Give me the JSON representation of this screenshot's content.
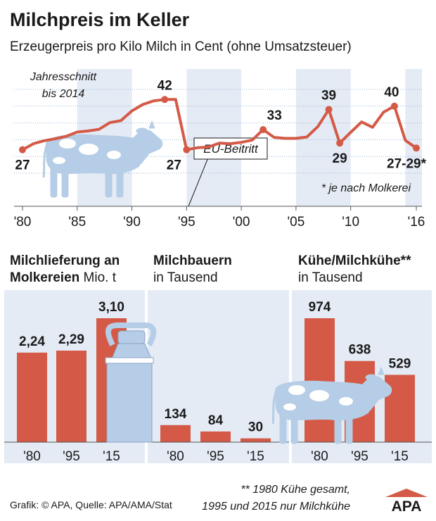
{
  "header": {
    "title": "Milchpreis im Keller",
    "subtitle": "Erzeugerpreis pro Kilo Milch in Cent (ohne Umsatzsteuer)"
  },
  "line_chart": {
    "note_line1": "Jahresschnitt",
    "note_line2": "bis 2014",
    "eu_label": "EU-Beitritt",
    "footnote": "* je nach Molkerei",
    "point_labels": [
      "27",
      "42",
      "27",
      "33",
      "39",
      "29",
      "40",
      "27-29*"
    ]
  },
  "panels": {
    "p1": {
      "title_bold": "Milchlieferung an",
      "title_bold2": "Molkereien",
      "title_normal": " Mio. t"
    },
    "p2": {
      "title_bold": "Milchbauern",
      "title_normal": "in Tausend"
    },
    "p3": {
      "title_bold": "Kühe/Milchkühe**",
      "title_normal": "in Tausend"
    }
  },
  "footer": {
    "source": "Grafik: © APA, Quelle: APA/AMA/Stat",
    "note_line1": "** 1980 Kühe gesamt,",
    "note_line2": "1995 und 2015 nur Milchkühe",
    "logo": "APA"
  },
  "colors": {
    "accent": "#d45a47",
    "panel_bg": "#e4ebf5",
    "cow_fill": "#b5cde6",
    "cow_spots": "#ffffff",
    "guide": "#9fb4d2"
  },
  "chart_data": [
    {
      "type": "line",
      "title": "Milchpreis im Keller",
      "subtitle": "Erzeugerpreis pro Kilo Milch in Cent (ohne Umsatzsteuer)",
      "x_ticks": [
        "'80",
        "'85",
        "'90",
        "'95",
        "'00",
        "'05",
        "'10",
        "'16"
      ],
      "xlim": [
        1980,
        2016
      ],
      "ylim": [
        20,
        45
      ],
      "grid": true,
      "x": [
        1980,
        1981,
        1982,
        1983,
        1984,
        1985,
        1986,
        1987,
        1988,
        1989,
        1990,
        1991,
        1992,
        1993,
        1994,
        1995,
        1996,
        1997,
        1998,
        1999,
        2000,
        2001,
        2002,
        2003,
        2004,
        2005,
        2006,
        2007,
        2008,
        2009,
        2010,
        2011,
        2012,
        2013,
        2014,
        2015,
        2016
      ],
      "y": [
        27,
        28.8,
        29.7,
        30.3,
        31,
        32.3,
        32.6,
        33.1,
        35.1,
        35.7,
        38.6,
        40.5,
        41.6,
        42,
        42,
        27,
        27.6,
        27.8,
        29,
        28.8,
        29.2,
        29.9,
        33,
        30.7,
        30.4,
        30.4,
        30.8,
        33.9,
        39,
        29,
        32.2,
        35.3,
        33.7,
        38.2,
        40,
        29.8,
        27.5
      ]
    },
    {
      "type": "bar",
      "title": "Milchlieferung an Molkereien Mio. t",
      "categories": [
        "'80",
        "'95",
        "'15"
      ],
      "values": [
        2.24,
        2.29,
        3.1
      ],
      "value_labels": [
        "2,24",
        "2,29",
        "3,10"
      ]
    },
    {
      "type": "bar",
      "title": "Milchbauern in Tausend",
      "categories": [
        "'80",
        "'95",
        "'15"
      ],
      "values": [
        134,
        84,
        30
      ],
      "value_labels": [
        "134",
        "84",
        "30"
      ]
    },
    {
      "type": "bar",
      "title": "Kühe/Milchkühe** in Tausend",
      "categories": [
        "'80",
        "'95",
        "'15"
      ],
      "values": [
        974,
        638,
        529
      ],
      "value_labels": [
        "974",
        "638",
        "529"
      ]
    }
  ]
}
